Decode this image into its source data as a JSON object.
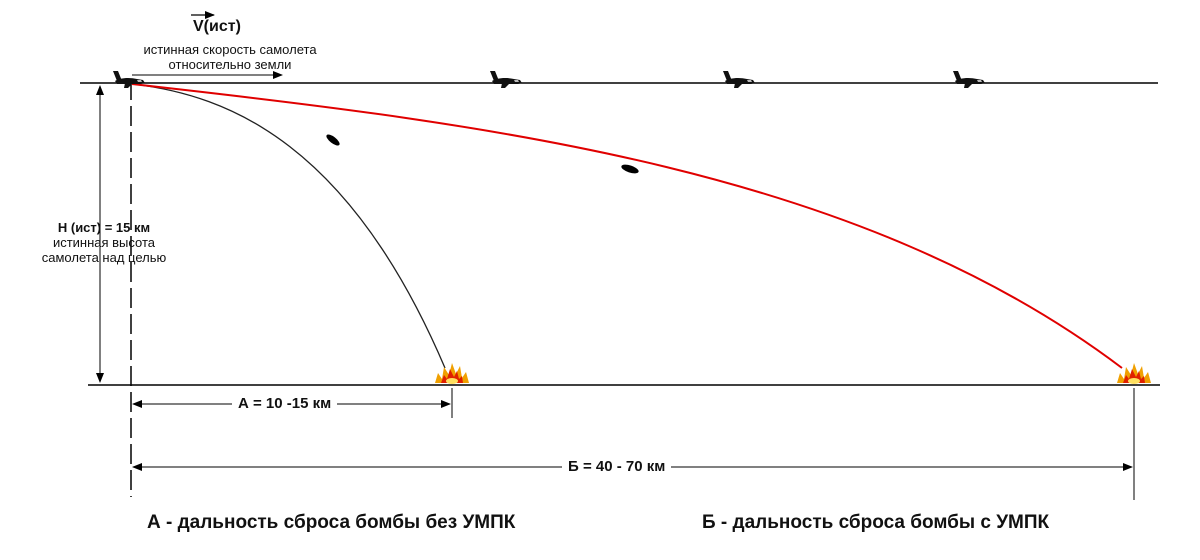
{
  "velocity": {
    "symbol": "V(ист)",
    "line1": "истинная скорость самолета",
    "line2": "относительно земли"
  },
  "height": {
    "title": "Н (ист) = 15 км",
    "line1": "истинная высота",
    "line2": "самолета над целью"
  },
  "distances": {
    "a": "А = 10 -15 км",
    "b": "Б = 40 - 70 км"
  },
  "captions": {
    "a": "А - дальность сброса бомбы без УМПК",
    "b": "Б - дальность сброса бомбы с УМПК"
  },
  "colors": {
    "trajectory_without_umpk": "#222222",
    "trajectory_with_umpk": "#e00000",
    "lines": "#000000",
    "explosion_outer": "#f0a000",
    "explosion_inner": "#e02000"
  },
  "icons": [
    "airplane-icon",
    "bomb-icon",
    "explosion-icon"
  ]
}
